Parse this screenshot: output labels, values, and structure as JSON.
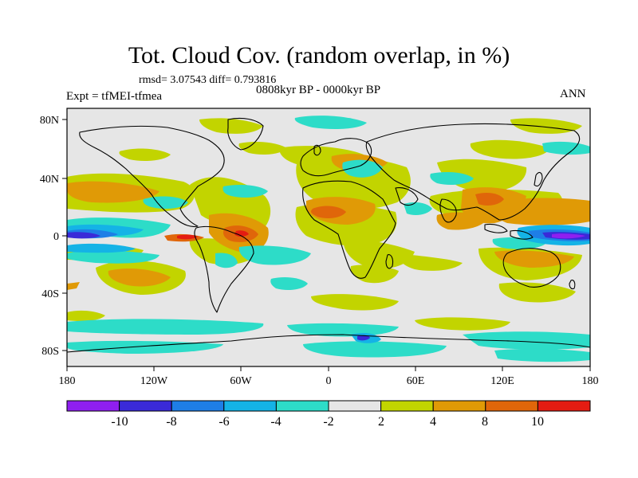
{
  "header": {
    "title": "Tot. Cloud Cov. (random overlap, in %)",
    "stats": "rmsd= 3.07543  diff= 0.793816",
    "period": "0808kyr BP - 0000kyr BP",
    "experiment": "Expt = tfMEI-tfmea",
    "season": "ANN"
  },
  "axes": {
    "lon_ticks": [
      "180",
      "120W",
      "60W",
      "0",
      "60E",
      "120E",
      "180"
    ],
    "lat_ticks": [
      "80N",
      "40N",
      "0",
      "40S",
      "80S"
    ]
  },
  "colorbar": {
    "colors": [
      "#8f1ff0",
      "#3a2ad8",
      "#1e7ee6",
      "#14b3e6",
      "#2ddcc8",
      "#e6e6e6",
      "#c2d400",
      "#e09a06",
      "#e0660a",
      "#e41c12"
    ],
    "labels": [
      "-10",
      "-8",
      "-6",
      "-4",
      "-2",
      "2",
      "4",
      "8",
      "10"
    ]
  }
}
